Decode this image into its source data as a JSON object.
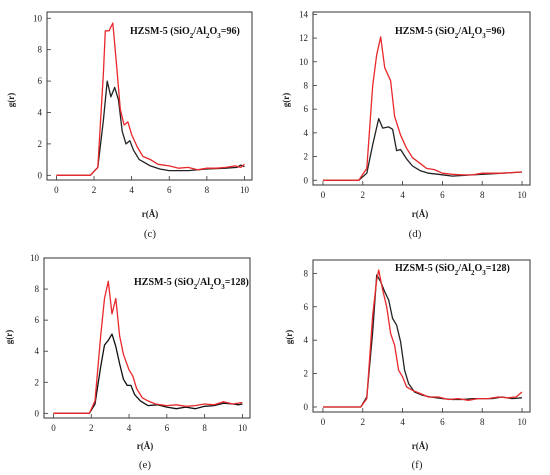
{
  "figure": {
    "series_colors": [
      "#222222",
      "#e8282b"
    ],
    "axis_color": "#333333"
  },
  "chart_data": [
    {
      "type": "line",
      "title": "HZSM-5 (SiO2/Al2O3=96)",
      "caption": "(c)",
      "xlabel": "r(Å)",
      "ylabel": "g(r)",
      "xlim": [
        -0.5,
        10.4
      ],
      "ylim": [
        -0.3,
        10.4
      ],
      "xticks": [
        0,
        2,
        4,
        6,
        8,
        10
      ],
      "yticks": [
        0,
        2,
        4,
        6,
        8,
        10
      ],
      "grid": false,
      "series": [
        {
          "color": "#222222",
          "points": [
            [
              0,
              0
            ],
            [
              1.8,
              0
            ],
            [
              2.2,
              0.5
            ],
            [
              2.5,
              3.5
            ],
            [
              2.7,
              6.0
            ],
            [
              2.9,
              5.0
            ],
            [
              3.1,
              5.6
            ],
            [
              3.3,
              4.8
            ],
            [
              3.5,
              2.8
            ],
            [
              3.7,
              2.0
            ],
            [
              3.9,
              2.2
            ],
            [
              4.1,
              1.6
            ],
            [
              4.4,
              1.0
            ],
            [
              4.7,
              0.8
            ],
            [
              5.0,
              0.6
            ],
            [
              5.5,
              0.4
            ],
            [
              6.0,
              0.3
            ],
            [
              7.0,
              0.3
            ],
            [
              8.0,
              0.4
            ],
            [
              9.0,
              0.45
            ],
            [
              9.6,
              0.5
            ],
            [
              9.8,
              0.65
            ],
            [
              10.0,
              0.55
            ]
          ]
        },
        {
          "color": "#e8282b",
          "points": [
            [
              0,
              0
            ],
            [
              1.8,
              0
            ],
            [
              2.2,
              0.5
            ],
            [
              2.5,
              6.5
            ],
            [
              2.6,
              9.2
            ],
            [
              2.8,
              9.2
            ],
            [
              3.0,
              9.7
            ],
            [
              3.2,
              7.0
            ],
            [
              3.4,
              4.2
            ],
            [
              3.6,
              3.2
            ],
            [
              3.8,
              3.4
            ],
            [
              4.0,
              2.6
            ],
            [
              4.3,
              1.8
            ],
            [
              4.6,
              1.2
            ],
            [
              5.0,
              1.0
            ],
            [
              5.4,
              0.7
            ],
            [
              6.0,
              0.6
            ],
            [
              6.5,
              0.45
            ],
            [
              7.0,
              0.5
            ],
            [
              7.5,
              0.35
            ],
            [
              8.0,
              0.45
            ],
            [
              8.5,
              0.45
            ],
            [
              9.0,
              0.5
            ],
            [
              9.5,
              0.6
            ],
            [
              9.8,
              0.5
            ],
            [
              10.0,
              0.7
            ]
          ]
        }
      ]
    },
    {
      "type": "line",
      "title": "HZSM-5 (SiO2/Al2O3=96)",
      "caption": "(d)",
      "xlabel": "r(Å)",
      "ylabel": "g(r)",
      "xlim": [
        -0.5,
        10.4
      ],
      "ylim": [
        -0.4,
        14.2
      ],
      "xticks": [
        0,
        2,
        4,
        6,
        8,
        10
      ],
      "yticks": [
        0,
        2,
        4,
        6,
        8,
        10,
        12,
        14
      ],
      "grid": false,
      "series": [
        {
          "color": "#222222",
          "points": [
            [
              0,
              0
            ],
            [
              1.8,
              0
            ],
            [
              2.2,
              0.6
            ],
            [
              2.5,
              3.0
            ],
            [
              2.8,
              5.2
            ],
            [
              3.0,
              4.4
            ],
            [
              3.3,
              4.5
            ],
            [
              3.5,
              4.3
            ],
            [
              3.7,
              2.5
            ],
            [
              3.9,
              2.6
            ],
            [
              4.2,
              1.8
            ],
            [
              4.5,
              1.2
            ],
            [
              4.9,
              0.8
            ],
            [
              5.3,
              0.6
            ],
            [
              5.8,
              0.5
            ],
            [
              6.5,
              0.35
            ],
            [
              7.0,
              0.4
            ],
            [
              7.5,
              0.45
            ],
            [
              8.0,
              0.5
            ],
            [
              9.0,
              0.6
            ],
            [
              10.0,
              0.7
            ]
          ]
        },
        {
          "color": "#e8282b",
          "points": [
            [
              0,
              0
            ],
            [
              1.8,
              0
            ],
            [
              2.2,
              1.0
            ],
            [
              2.5,
              8.0
            ],
            [
              2.7,
              10.6
            ],
            [
              2.9,
              12.1
            ],
            [
              3.1,
              9.5
            ],
            [
              3.4,
              8.4
            ],
            [
              3.6,
              5.4
            ],
            [
              3.9,
              3.8
            ],
            [
              4.2,
              2.7
            ],
            [
              4.5,
              1.9
            ],
            [
              4.9,
              1.4
            ],
            [
              5.2,
              1.0
            ],
            [
              5.6,
              0.9
            ],
            [
              6.0,
              0.6
            ],
            [
              6.5,
              0.5
            ],
            [
              7.0,
              0.45
            ],
            [
              7.5,
              0.45
            ],
            [
              8.0,
              0.6
            ],
            [
              9.0,
              0.6
            ],
            [
              10.0,
              0.7
            ]
          ]
        }
      ]
    },
    {
      "type": "line",
      "title": "HZSM-5 (SiO2/Al2O3=128)",
      "caption": "(e)",
      "xlabel": "r(Å)",
      "ylabel": "g(r)",
      "xlim": [
        -0.5,
        10.4
      ],
      "ylim": [
        -0.3,
        10.0
      ],
      "xticks": [
        0,
        2,
        4,
        6,
        8,
        10
      ],
      "yticks": [
        0,
        2,
        4,
        6,
        8,
        10
      ],
      "grid": false,
      "series": [
        {
          "color": "#111111",
          "points": [
            [
              0,
              0
            ],
            [
              1.9,
              0
            ],
            [
              2.2,
              0.6
            ],
            [
              2.5,
              3.0
            ],
            [
              2.7,
              4.4
            ],
            [
              2.9,
              4.7
            ],
            [
              3.1,
              5.1
            ],
            [
              3.3,
              4.3
            ],
            [
              3.5,
              3.2
            ],
            [
              3.7,
              2.2
            ],
            [
              3.9,
              1.8
            ],
            [
              4.1,
              1.8
            ],
            [
              4.3,
              1.2
            ],
            [
              4.6,
              0.8
            ],
            [
              5.0,
              0.5
            ],
            [
              5.5,
              0.55
            ],
            [
              6.0,
              0.4
            ],
            [
              6.5,
              0.3
            ],
            [
              7.0,
              0.4
            ],
            [
              7.5,
              0.3
            ],
            [
              8.0,
              0.45
            ],
            [
              8.5,
              0.5
            ],
            [
              9.0,
              0.65
            ],
            [
              9.5,
              0.6
            ],
            [
              9.8,
              0.55
            ],
            [
              10.0,
              0.6
            ]
          ]
        },
        {
          "color": "#e8282b",
          "points": [
            [
              0,
              0
            ],
            [
              1.9,
              0
            ],
            [
              2.2,
              0.8
            ],
            [
              2.5,
              5.0
            ],
            [
              2.7,
              7.4
            ],
            [
              2.9,
              8.5
            ],
            [
              3.1,
              6.4
            ],
            [
              3.3,
              7.4
            ],
            [
              3.5,
              5.0
            ],
            [
              3.7,
              3.8
            ],
            [
              4.0,
              2.8
            ],
            [
              4.2,
              2.4
            ],
            [
              4.4,
              1.6
            ],
            [
              4.7,
              1.0
            ],
            [
              5.0,
              0.8
            ],
            [
              5.4,
              0.6
            ],
            [
              6.0,
              0.5
            ],
            [
              6.5,
              0.55
            ],
            [
              7.0,
              0.45
            ],
            [
              7.5,
              0.5
            ],
            [
              8.0,
              0.6
            ],
            [
              8.5,
              0.55
            ],
            [
              9.0,
              0.75
            ],
            [
              9.5,
              0.6
            ],
            [
              10.0,
              0.7
            ]
          ]
        }
      ]
    },
    {
      "type": "line",
      "title": "HZSM-5 (SiO2/Al2O3=128)",
      "caption": "(f)",
      "xlabel": "r(Å)",
      "ylabel": "g(r)",
      "xlim": [
        -0.5,
        10.4
      ],
      "ylim": [
        -0.3,
        8.8
      ],
      "xticks": [
        0,
        2,
        4,
        6,
        8,
        10
      ],
      "yticks": [
        0,
        2,
        4,
        6,
        8
      ],
      "grid": false,
      "series": [
        {
          "color": "#222222",
          "points": [
            [
              0,
              0
            ],
            [
              1.9,
              0
            ],
            [
              2.2,
              0.6
            ],
            [
              2.5,
              4.5
            ],
            [
              2.7,
              7.9
            ],
            [
              2.9,
              7.5
            ],
            [
              3.1,
              6.9
            ],
            [
              3.3,
              6.4
            ],
            [
              3.5,
              5.3
            ],
            [
              3.7,
              4.9
            ],
            [
              3.9,
              3.9
            ],
            [
              4.1,
              2.2
            ],
            [
              4.3,
              1.4
            ],
            [
              4.6,
              0.9
            ],
            [
              5.0,
              0.7
            ],
            [
              5.4,
              0.6
            ],
            [
              6.0,
              0.5
            ],
            [
              6.5,
              0.45
            ],
            [
              7.0,
              0.45
            ],
            [
              7.5,
              0.5
            ],
            [
              8.0,
              0.5
            ],
            [
              8.5,
              0.5
            ],
            [
              9.0,
              0.6
            ],
            [
              9.5,
              0.5
            ],
            [
              10.0,
              0.55
            ]
          ]
        },
        {
          "color": "#e8282b",
          "points": [
            [
              0,
              0
            ],
            [
              1.9,
              0
            ],
            [
              2.2,
              0.5
            ],
            [
              2.5,
              5.5
            ],
            [
              2.7,
              7.6
            ],
            [
              2.8,
              8.2
            ],
            [
              3.0,
              7.0
            ],
            [
              3.2,
              6.0
            ],
            [
              3.4,
              4.4
            ],
            [
              3.6,
              3.7
            ],
            [
              3.8,
              2.2
            ],
            [
              4.0,
              1.8
            ],
            [
              4.2,
              1.2
            ],
            [
              4.5,
              1.0
            ],
            [
              4.9,
              0.8
            ],
            [
              5.3,
              0.6
            ],
            [
              5.8,
              0.6
            ],
            [
              6.3,
              0.45
            ],
            [
              6.8,
              0.5
            ],
            [
              7.3,
              0.4
            ],
            [
              7.8,
              0.5
            ],
            [
              8.3,
              0.5
            ],
            [
              8.8,
              0.6
            ],
            [
              9.3,
              0.55
            ],
            [
              9.7,
              0.6
            ],
            [
              10.0,
              0.9
            ]
          ]
        }
      ]
    }
  ]
}
